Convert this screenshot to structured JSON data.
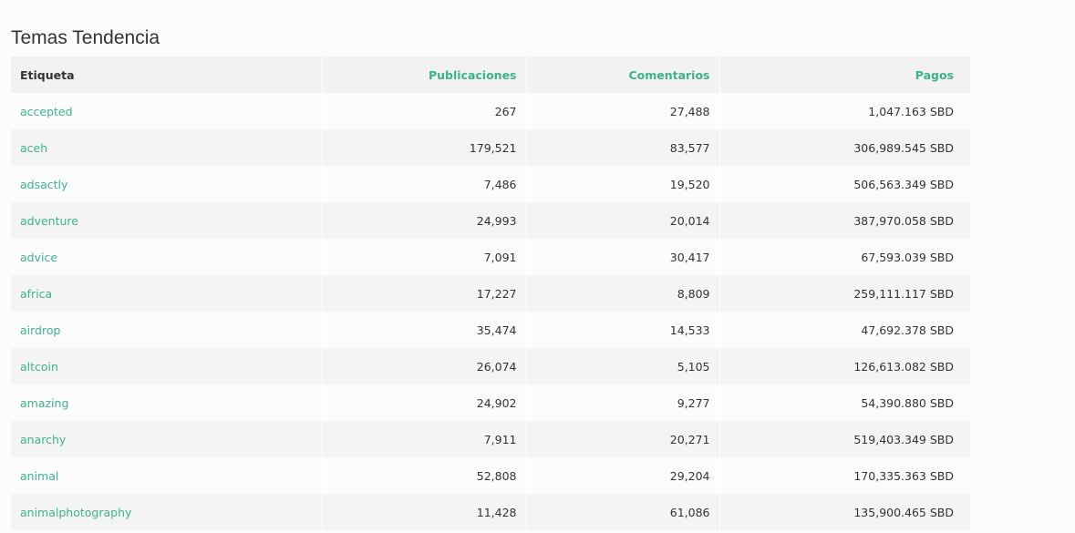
{
  "page": {
    "title": "Temas Tendencia"
  },
  "table": {
    "headers": {
      "tag": "Etiqueta",
      "posts": "Publicaciones",
      "comments": "Comentarios",
      "payouts": "Pagos"
    },
    "rows": [
      {
        "tag": "accepted",
        "posts": "267",
        "comments": "27,488",
        "payouts": "1,047.163 SBD"
      },
      {
        "tag": "aceh",
        "posts": "179,521",
        "comments": "83,577",
        "payouts": "306,989.545 SBD"
      },
      {
        "tag": "adsactly",
        "posts": "7,486",
        "comments": "19,520",
        "payouts": "506,563.349 SBD"
      },
      {
        "tag": "adventure",
        "posts": "24,993",
        "comments": "20,014",
        "payouts": "387,970.058 SBD"
      },
      {
        "tag": "advice",
        "posts": "7,091",
        "comments": "30,417",
        "payouts": "67,593.039 SBD"
      },
      {
        "tag": "africa",
        "posts": "17,227",
        "comments": "8,809",
        "payouts": "259,111.117 SBD"
      },
      {
        "tag": "airdrop",
        "posts": "35,474",
        "comments": "14,533",
        "payouts": "47,692.378 SBD"
      },
      {
        "tag": "altcoin",
        "posts": "26,074",
        "comments": "5,105",
        "payouts": "126,613.082 SBD"
      },
      {
        "tag": "amazing",
        "posts": "24,902",
        "comments": "9,277",
        "payouts": "54,390.880 SBD"
      },
      {
        "tag": "anarchy",
        "posts": "7,911",
        "comments": "20,271",
        "payouts": "519,403.349 SBD"
      },
      {
        "tag": "animal",
        "posts": "52,808",
        "comments": "29,204",
        "payouts": "170,335.363 SBD"
      },
      {
        "tag": "animalphotography",
        "posts": "11,428",
        "comments": "61,086",
        "payouts": "135,900.465 SBD"
      }
    ]
  },
  "colors": {
    "accent": "#3cb38d",
    "text": "#333333",
    "header_bg": "#f2f2f2",
    "row_alt_bg": "#f4f4f4",
    "page_bg": "#fcfcfc"
  }
}
